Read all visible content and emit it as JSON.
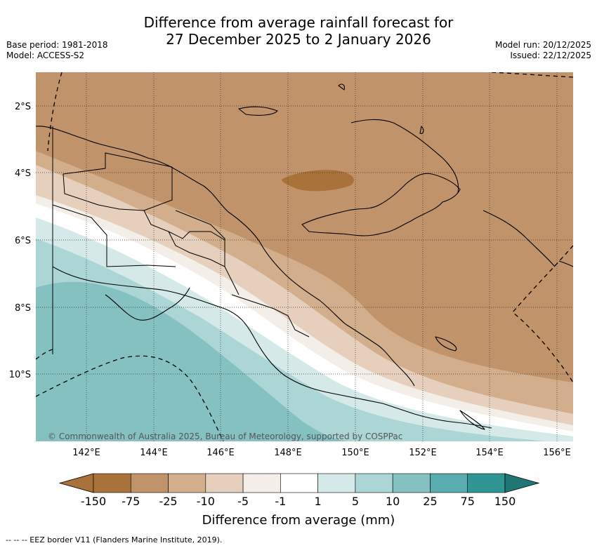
{
  "header": {
    "title_line1": "Difference from average rainfall forecast for",
    "title_line2": "27 December 2025 to 2 January 2026",
    "base_period": "Base period: 1981-2018",
    "model": "Model: ACCESS-S2",
    "model_run": "Model run: 20/12/2025",
    "issued": "Issued: 22/12/2025"
  },
  "map": {
    "lat_labels": [
      "2°S",
      "4°S",
      "6°S",
      "8°S",
      "10°S"
    ],
    "lon_labels": [
      "142°E",
      "144°E",
      "146°E",
      "148°E",
      "150°E",
      "152°E",
      "154°E",
      "156°E"
    ],
    "copyright": "© Commonwealth of Australia 2025, Bureau of Meteorology, supported by COSPPac"
  },
  "colorbar": {
    "title": "Difference from average (mm)",
    "ticks": [
      "-150",
      "-75",
      "-25",
      "-10",
      "-5",
      "-1",
      "1",
      "5",
      "10",
      "25",
      "75",
      "150"
    ],
    "colors": [
      "#a8723a",
      "#c0936a",
      "#d2ae8c",
      "#e6d0bd",
      "#f3eee7",
      "#ffffff",
      "#d5e9e9",
      "#acd6d6",
      "#86c1c2",
      "#58acaf",
      "#2f9694",
      "#1f7775"
    ]
  },
  "footer": {
    "eez_note": "--  --  -- EEZ border V11 (Flanders Marine Institute, 2019)."
  }
}
